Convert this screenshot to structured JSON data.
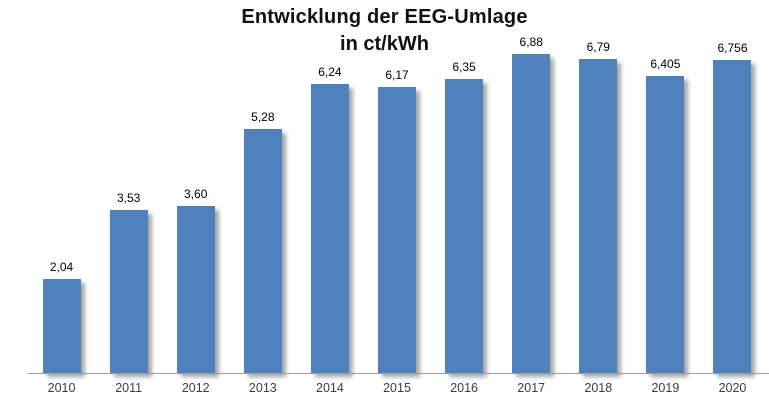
{
  "chart_data": {
    "type": "bar",
    "title": "Entwicklung der EEG-Umlage",
    "subtitle": "in ct/kWh",
    "unit": "ct/kWh",
    "categories": [
      "2010",
      "2011",
      "2012",
      "2013",
      "2014",
      "2015",
      "2016",
      "2017",
      "2018",
      "2019",
      "2020"
    ],
    "values": [
      2.04,
      3.53,
      3.6,
      5.28,
      6.24,
      6.17,
      6.35,
      6.88,
      6.79,
      6.405,
      6.756
    ],
    "value_labels": [
      "2,04",
      "3,53",
      "3,60",
      "5,28",
      "6,24",
      "6,17",
      "6,35",
      "6,88",
      "6,79",
      "6,405",
      "6,756"
    ],
    "ylim": [
      0,
      7.2
    ],
    "grid": false,
    "legend": "none",
    "colors": {
      "bar": "#4f81bd",
      "axis_line": "#9d9d9d",
      "data_label": "#000000",
      "tick_label": "#3d3d3d",
      "title": "#111111"
    }
  }
}
